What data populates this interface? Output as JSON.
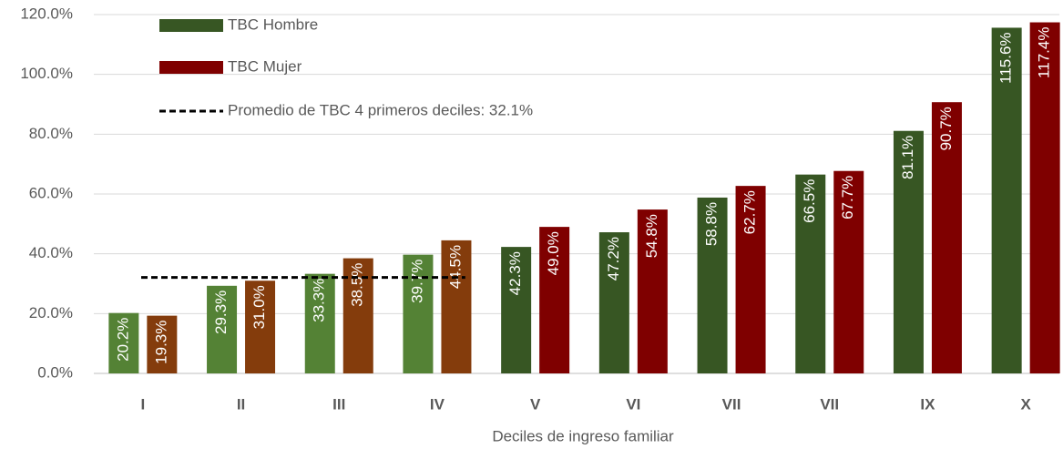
{
  "chart_data": {
    "type": "bar",
    "x_label": "Deciles de ingreso familiar",
    "categories": [
      "I",
      "II",
      "III",
      "IV",
      "V",
      "VI",
      "VII",
      "VII",
      "IX",
      "X"
    ],
    "series": [
      {
        "name": "TBC Hombre",
        "color": "#375623",
        "colors": [
          "#548235",
          "#548235",
          "#548235",
          "#548235",
          "#375623",
          "#375623",
          "#375623",
          "#375623",
          "#375623",
          "#375623"
        ],
        "values": [
          20.2,
          29.3,
          33.3,
          39.7,
          42.3,
          47.2,
          58.8,
          66.5,
          81.1,
          115.6
        ],
        "value_labels": [
          "20.2%",
          "29.3%",
          "33.3%",
          "39.7%",
          "42.3%",
          "47.2%",
          "58.8%",
          "66.5%",
          "81.1%",
          "115.6%"
        ]
      },
      {
        "name": "TBC Mujer",
        "color": "#7f0000",
        "colors": [
          "#843c0c",
          "#843c0c",
          "#843c0c",
          "#843c0c",
          "#7f0000",
          "#7f0000",
          "#7f0000",
          "#7f0000",
          "#7f0000",
          "#7f0000"
        ],
        "values": [
          19.3,
          31.0,
          38.5,
          44.5,
          49.0,
          54.8,
          62.7,
          67.7,
          90.7,
          117.4
        ],
        "value_labels": [
          "19.3%",
          "31.0%",
          "38.5%",
          "44.5%",
          "49.0%",
          "54.8%",
          "62.7%",
          "67.7%",
          "90.7%",
          "117.4%"
        ]
      }
    ],
    "reference_line": {
      "value": 32.1,
      "label": "Promedio de TBC 4 primeros deciles: 32.1%",
      "span_categories": [
        "I",
        "IV"
      ],
      "color": "#000000",
      "dashed": true
    },
    "ylim": [
      0,
      120
    ],
    "yticks": [
      {
        "value": 0,
        "label": "0.0%"
      },
      {
        "value": 20,
        "label": "20.0%"
      },
      {
        "value": 40,
        "label": "40.0%"
      },
      {
        "value": 60,
        "label": "60.0%"
      },
      {
        "value": 80,
        "label": "80.0%"
      },
      {
        "value": 100,
        "label": "100.0%"
      },
      {
        "value": 120,
        "label": "120.0%"
      }
    ],
    "grid": true,
    "legend": "top-left"
  }
}
